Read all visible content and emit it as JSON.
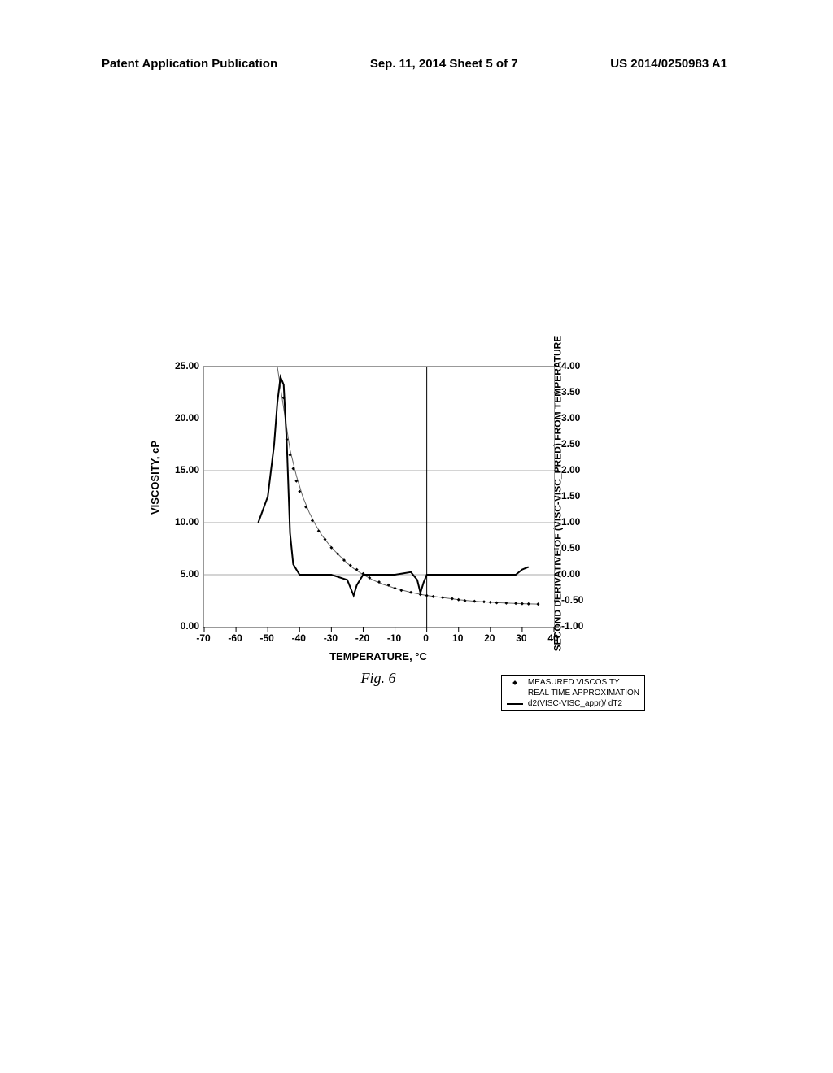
{
  "header": {
    "left": "Patent Application Publication",
    "center": "Sep. 11, 2014   Sheet 5 of 7",
    "right": "US 2014/0250983 A1"
  },
  "chart": {
    "type": "line-scatter-dual-axis",
    "title_fontsize": 13,
    "background_color": "#ffffff",
    "grid_color": "#aaaaaa",
    "border_color": "#999999",
    "x_axis": {
      "label": "TEMPERATURE, °C",
      "min": -70,
      "max": 40,
      "ticks": [
        -70,
        -60,
        -50,
        -40,
        -30,
        -20,
        -10,
        0,
        10,
        20,
        30,
        40
      ]
    },
    "y_axis_left": {
      "label": "VISCOSITY, cP",
      "min": 0,
      "max": 25,
      "ticks": [
        0,
        5,
        10,
        15,
        20,
        25
      ],
      "tick_labels": [
        "0.00",
        "5.00",
        "10.00",
        "15.00",
        "20.00",
        "25.00"
      ]
    },
    "y_axis_right": {
      "label": "SECOND DERIVATIVE OF (VISC-VISC_PRED) FROM TEMPERATURE",
      "min": -1.0,
      "max": 4.0,
      "ticks": [
        -1.0,
        -0.5,
        0,
        0.5,
        1.0,
        1.5,
        2.0,
        2.5,
        3.0,
        3.5,
        4.0
      ],
      "tick_labels": [
        "-1.00",
        "-0.50",
        "0.00",
        "0.50",
        "1.00",
        "1.50",
        "2.00",
        "2.50",
        "3.00",
        "3.50",
        "4.00"
      ]
    },
    "gridlines_h_at_left_y": [
      5,
      10,
      15
    ],
    "gridlines_v_at_x": [
      0
    ],
    "series": {
      "measured_viscosity": {
        "label": "MEASURED VISCOSITY",
        "type": "scatter",
        "marker": "diamond",
        "marker_color": "#000000",
        "marker_size": 4,
        "axis": "left",
        "points": [
          [
            -45,
            22.0
          ],
          [
            -44,
            18.0
          ],
          [
            -43,
            16.5
          ],
          [
            -42,
            15.2
          ],
          [
            -41,
            14.0
          ],
          [
            -40,
            13.0
          ],
          [
            -38,
            11.5
          ],
          [
            -36,
            10.2
          ],
          [
            -34,
            9.2
          ],
          [
            -32,
            8.4
          ],
          [
            -30,
            7.6
          ],
          [
            -28,
            7.0
          ],
          [
            -26,
            6.4
          ],
          [
            -24,
            5.9
          ],
          [
            -22,
            5.5
          ],
          [
            -20,
            5.1
          ],
          [
            -18,
            4.7
          ],
          [
            -15,
            4.3
          ],
          [
            -12,
            4.0
          ],
          [
            -10,
            3.7
          ],
          [
            -8,
            3.5
          ],
          [
            -5,
            3.3
          ],
          [
            -2,
            3.1
          ],
          [
            0,
            3.0
          ],
          [
            2,
            2.9
          ],
          [
            5,
            2.8
          ],
          [
            8,
            2.7
          ],
          [
            10,
            2.6
          ],
          [
            12,
            2.5
          ],
          [
            15,
            2.45
          ],
          [
            18,
            2.4
          ],
          [
            20,
            2.35
          ],
          [
            22,
            2.3
          ],
          [
            25,
            2.28
          ],
          [
            28,
            2.25
          ],
          [
            30,
            2.22
          ],
          [
            32,
            2.2
          ],
          [
            35,
            2.18
          ]
        ]
      },
      "real_time_approximation": {
        "label": "REAL TIME APPROXIMATION",
        "type": "line",
        "line_color": "#666666",
        "line_width": 1,
        "axis": "left",
        "points": [
          [
            -47,
            25.0
          ],
          [
            -45,
            21.0
          ],
          [
            -43,
            17.0
          ],
          [
            -41,
            14.5
          ],
          [
            -39,
            12.5
          ],
          [
            -37,
            11.0
          ],
          [
            -35,
            9.8
          ],
          [
            -33,
            8.8
          ],
          [
            -31,
            8.0
          ],
          [
            -29,
            7.3
          ],
          [
            -27,
            6.7
          ],
          [
            -25,
            6.1
          ],
          [
            -23,
            5.6
          ],
          [
            -20,
            5.0
          ],
          [
            -17,
            4.5
          ],
          [
            -14,
            4.1
          ],
          [
            -10,
            3.7
          ],
          [
            -5,
            3.3
          ],
          [
            0,
            3.0
          ],
          [
            5,
            2.8
          ],
          [
            10,
            2.6
          ],
          [
            15,
            2.45
          ],
          [
            20,
            2.35
          ],
          [
            25,
            2.28
          ],
          [
            30,
            2.22
          ],
          [
            35,
            2.18
          ]
        ]
      },
      "d2_visc": {
        "label": "d2(VISC-VISC_appr)/ dT2",
        "type": "line",
        "line_color": "#000000",
        "line_width": 2,
        "axis": "right",
        "points": [
          [
            -53,
            1.0
          ],
          [
            -50,
            1.5
          ],
          [
            -48,
            2.5
          ],
          [
            -47,
            3.3
          ],
          [
            -46,
            3.8
          ],
          [
            -45,
            3.65
          ],
          [
            -44,
            2.5
          ],
          [
            -43,
            0.8
          ],
          [
            -42,
            0.2
          ],
          [
            -40,
            0.0
          ],
          [
            -35,
            0.0
          ],
          [
            -30,
            0.0
          ],
          [
            -25,
            -0.1
          ],
          [
            -23,
            -0.4
          ],
          [
            -22,
            -0.2
          ],
          [
            -20,
            0.0
          ],
          [
            -15,
            0.0
          ],
          [
            -10,
            0.0
          ],
          [
            -5,
            0.05
          ],
          [
            -3,
            -0.1
          ],
          [
            -2,
            -0.35
          ],
          [
            -1,
            -0.15
          ],
          [
            0,
            0.0
          ],
          [
            2,
            0.0
          ],
          [
            5,
            0.0
          ],
          [
            10,
            0.0
          ],
          [
            15,
            0.0
          ],
          [
            20,
            0.0
          ],
          [
            25,
            0.0
          ],
          [
            28,
            0.0
          ],
          [
            30,
            0.1
          ],
          [
            32,
            0.15
          ]
        ]
      }
    },
    "legend": {
      "items": [
        {
          "symbol": "dot",
          "text": "MEASURED VISCOSITY"
        },
        {
          "symbol": "thin",
          "text": "REAL TIME APPROXIMATION"
        },
        {
          "symbol": "thick",
          "text": "d2(VISC-VISC_appr)/ dT2"
        }
      ]
    },
    "figure_label": "Fig. 6"
  }
}
